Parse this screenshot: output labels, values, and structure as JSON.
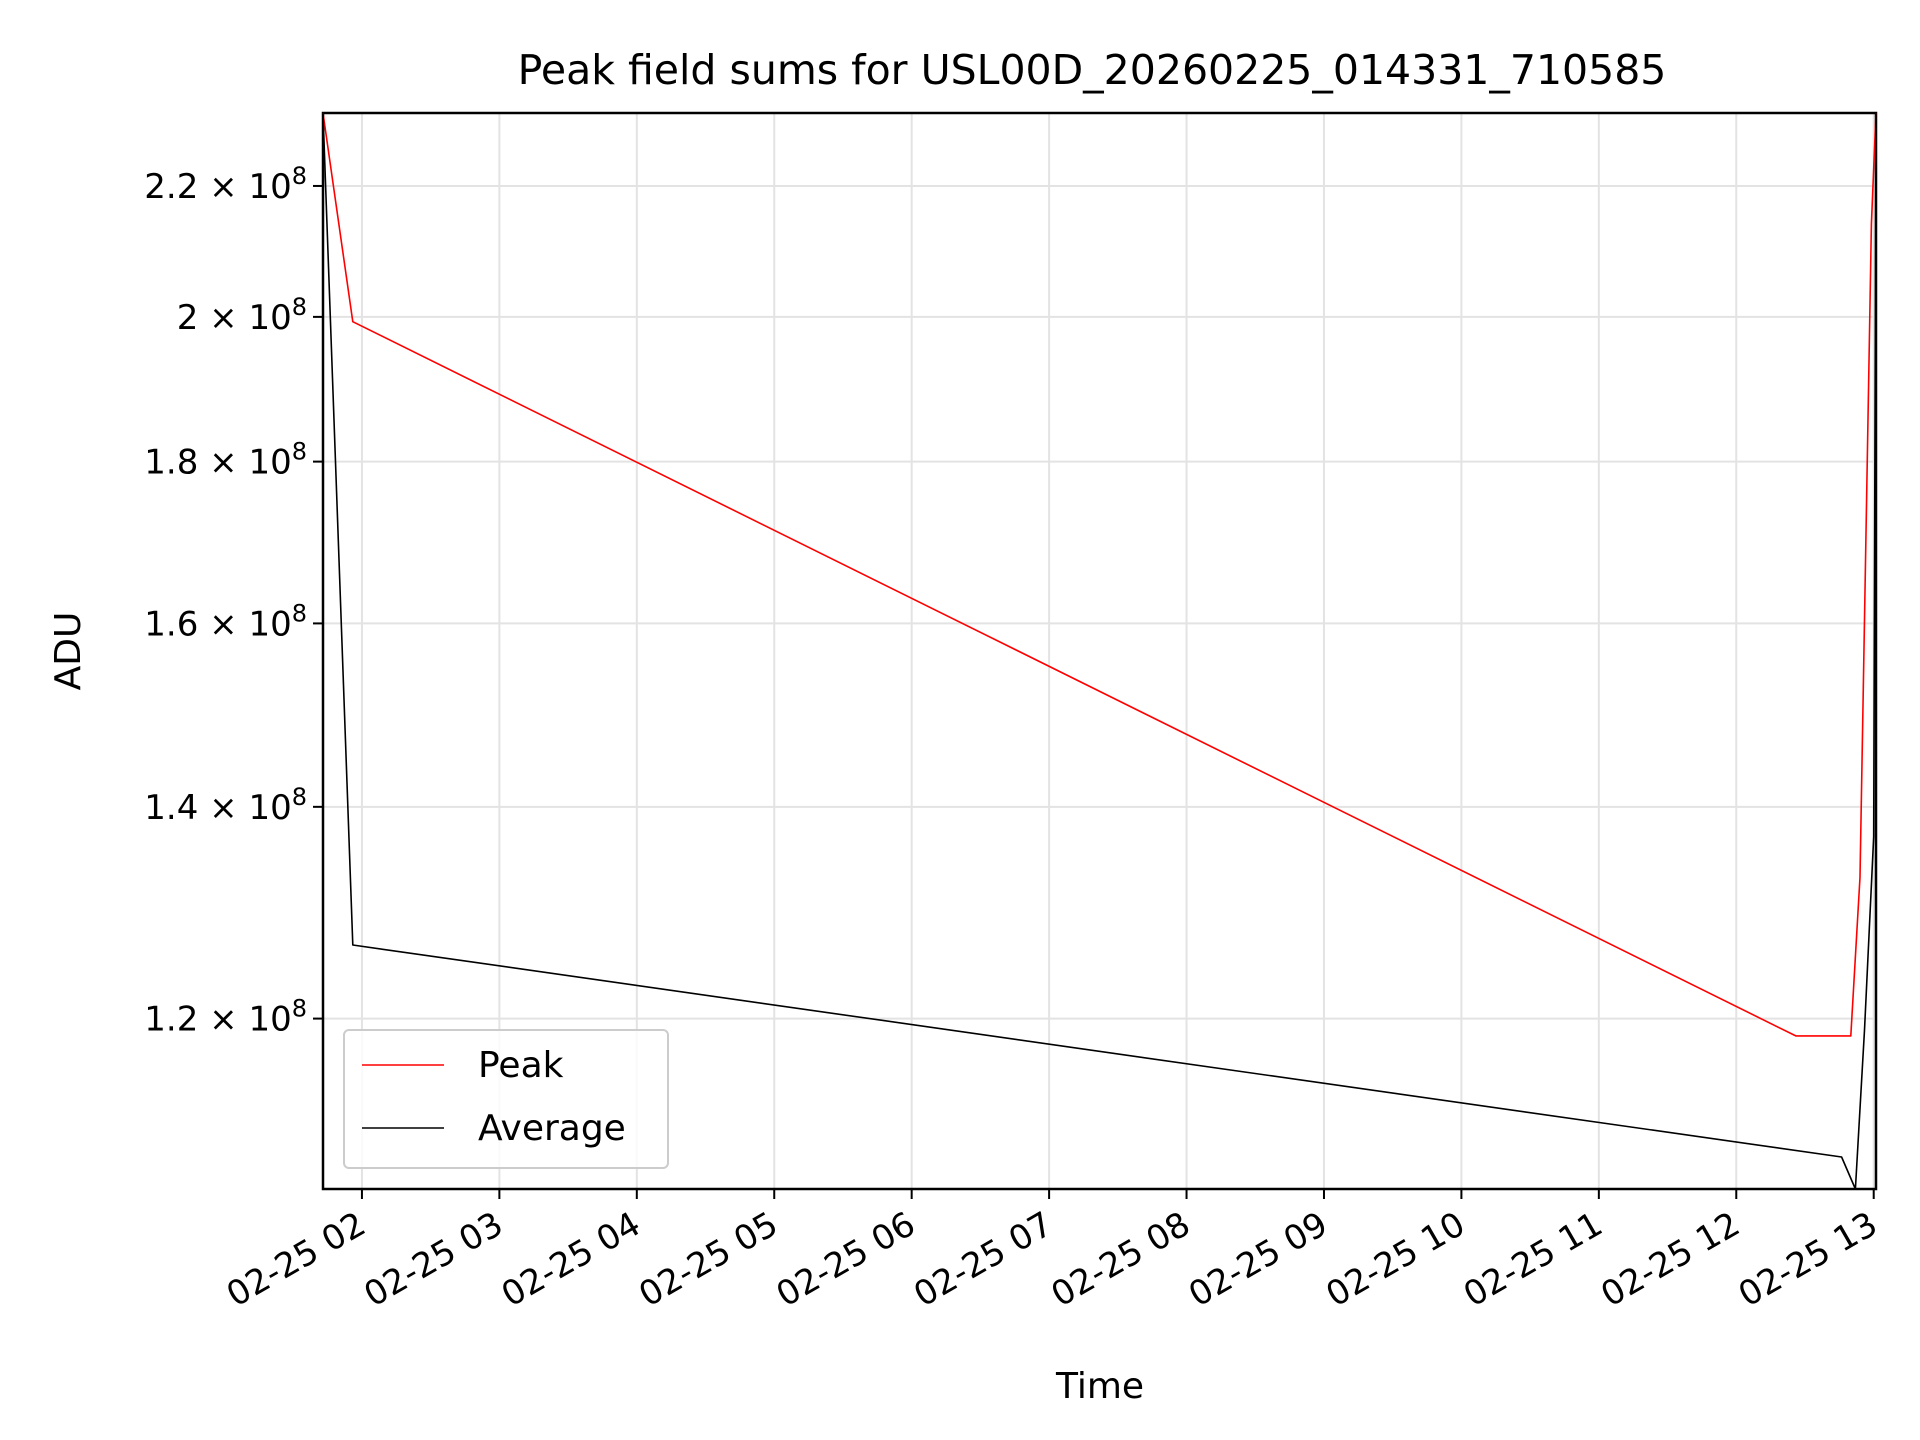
{
  "chart_data": {
    "type": "line",
    "title": "Peak field sums for USL00D_20260225_014331_710585",
    "xlabel": "Time",
    "ylabel": "ADU",
    "yscale": "log",
    "xlim": [
      "2026-02-25 01:43",
      "2026-02-25 13:01"
    ],
    "ylim": [
      106000000,
      232000000
    ],
    "grid": true,
    "legend_position": "lower-left",
    "x_tick_labels": [
      "02-25 02",
      "02-25 03",
      "02-25 04",
      "02-25 05",
      "02-25 06",
      "02-25 07",
      "02-25 08",
      "02-25 09",
      "02-25 10",
      "02-25 11",
      "02-25 12",
      "02-25 13"
    ],
    "y_ticks": [
      {
        "value": 120000000,
        "mantissa": "1.2",
        "exp": "8"
      },
      {
        "value": 140000000,
        "mantissa": "1.4",
        "exp": "8"
      },
      {
        "value": 160000000,
        "mantissa": "1.6",
        "exp": "8"
      },
      {
        "value": 180000000,
        "mantissa": "1.8",
        "exp": "8"
      },
      {
        "value": 200000000,
        "mantissa": "2",
        "exp": "8"
      },
      {
        "value": 220000000,
        "mantissa": "2.2",
        "exp": "8"
      }
    ],
    "series": [
      {
        "name": "Peak",
        "color": "#ff0000",
        "points": [
          {
            "x": "2026-02-25 01:43",
            "y": 232000000
          },
          {
            "x": "2026-02-25 01:56",
            "y": 199300000
          },
          {
            "x": "2026-02-25 12:26",
            "y": 118500000
          },
          {
            "x": "2026-02-25 12:50",
            "y": 118500000
          },
          {
            "x": "2026-02-25 12:54",
            "y": 133000000
          },
          {
            "x": "2026-02-25 12:59",
            "y": 214000000
          },
          {
            "x": "2026-02-25 13:01",
            "y": 232000000
          }
        ]
      },
      {
        "name": "Average",
        "color": "#000000",
        "points": [
          {
            "x": "2026-02-25 01:43",
            "y": 232000000
          },
          {
            "x": "2026-02-25 01:56",
            "y": 126600000
          },
          {
            "x": "2026-02-25 12:46",
            "y": 108500000
          },
          {
            "x": "2026-02-25 12:52",
            "y": 106000000
          },
          {
            "x": "2026-02-25 12:56",
            "y": 119000000
          },
          {
            "x": "2026-02-25 13:00",
            "y": 137000000
          },
          {
            "x": "2026-02-25 13:01",
            "y": 232000000
          }
        ]
      }
    ]
  }
}
